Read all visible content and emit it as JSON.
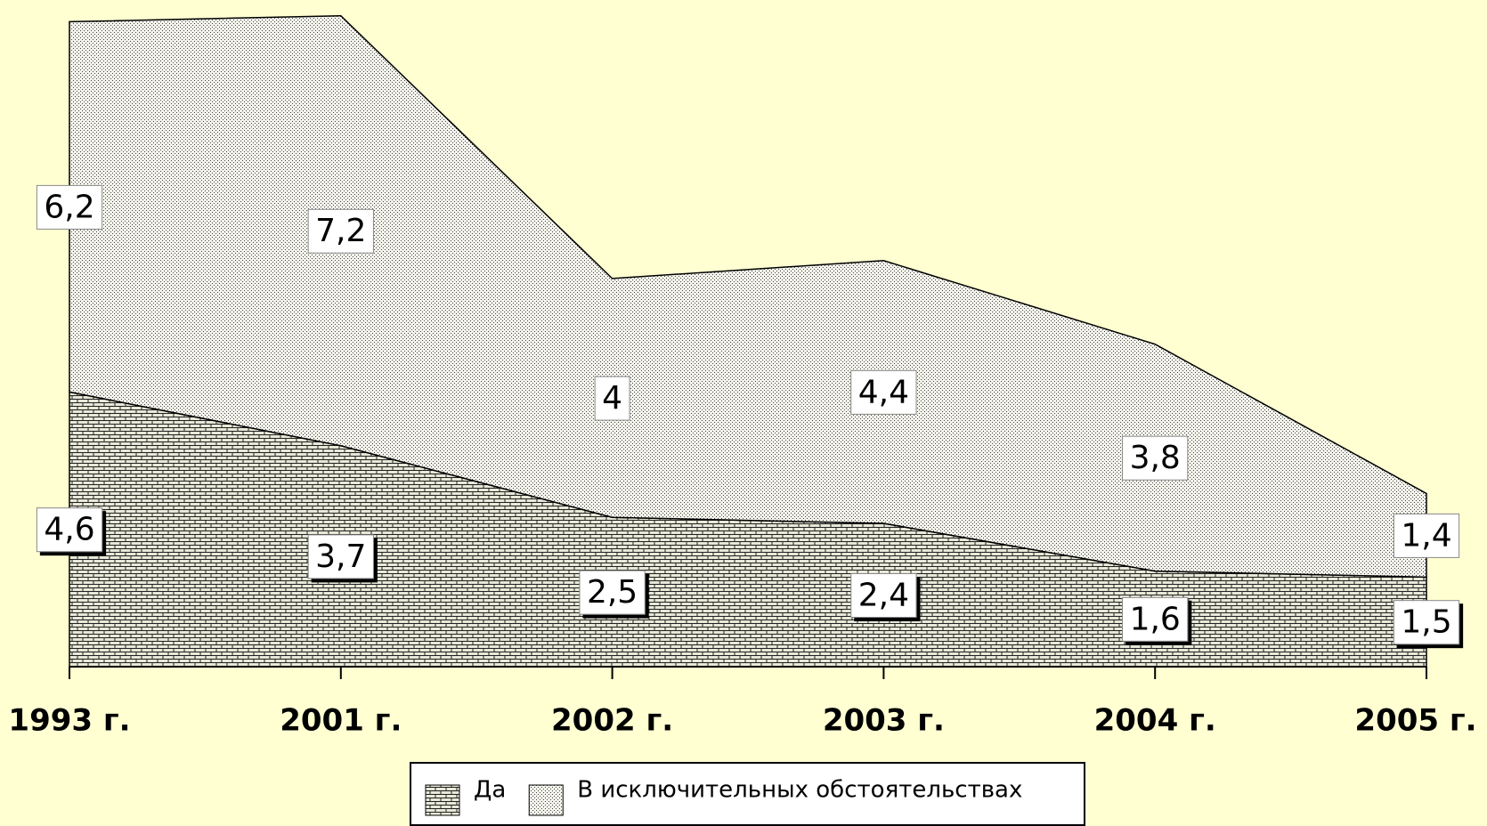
{
  "chart_data": {
    "type": "stacked-area",
    "categories": [
      "1993 г.",
      "2001 г.",
      "2002 г.",
      "2003 г.",
      "2004 г.",
      "2005 г."
    ],
    "series": [
      {
        "name": "Да",
        "color": "#000000",
        "values": [
          4.6,
          3.7,
          2.5,
          2.4,
          1.6,
          1.5
        ],
        "value_labels": [
          "4,6",
          "3,7",
          "2,5",
          "2,4",
          "1,6",
          "1,5"
        ]
      },
      {
        "name": "В исключительных обстоятельствах",
        "color": "#000000",
        "values": [
          6.2,
          7.2,
          4,
          4.4,
          3.8,
          1.4
        ],
        "value_labels": [
          "6,2",
          "7,2",
          "4",
          "4,4",
          "3,8",
          "1,4"
        ]
      }
    ],
    "ylim": [
      0,
      11
    ],
    "legend": "bottom"
  }
}
